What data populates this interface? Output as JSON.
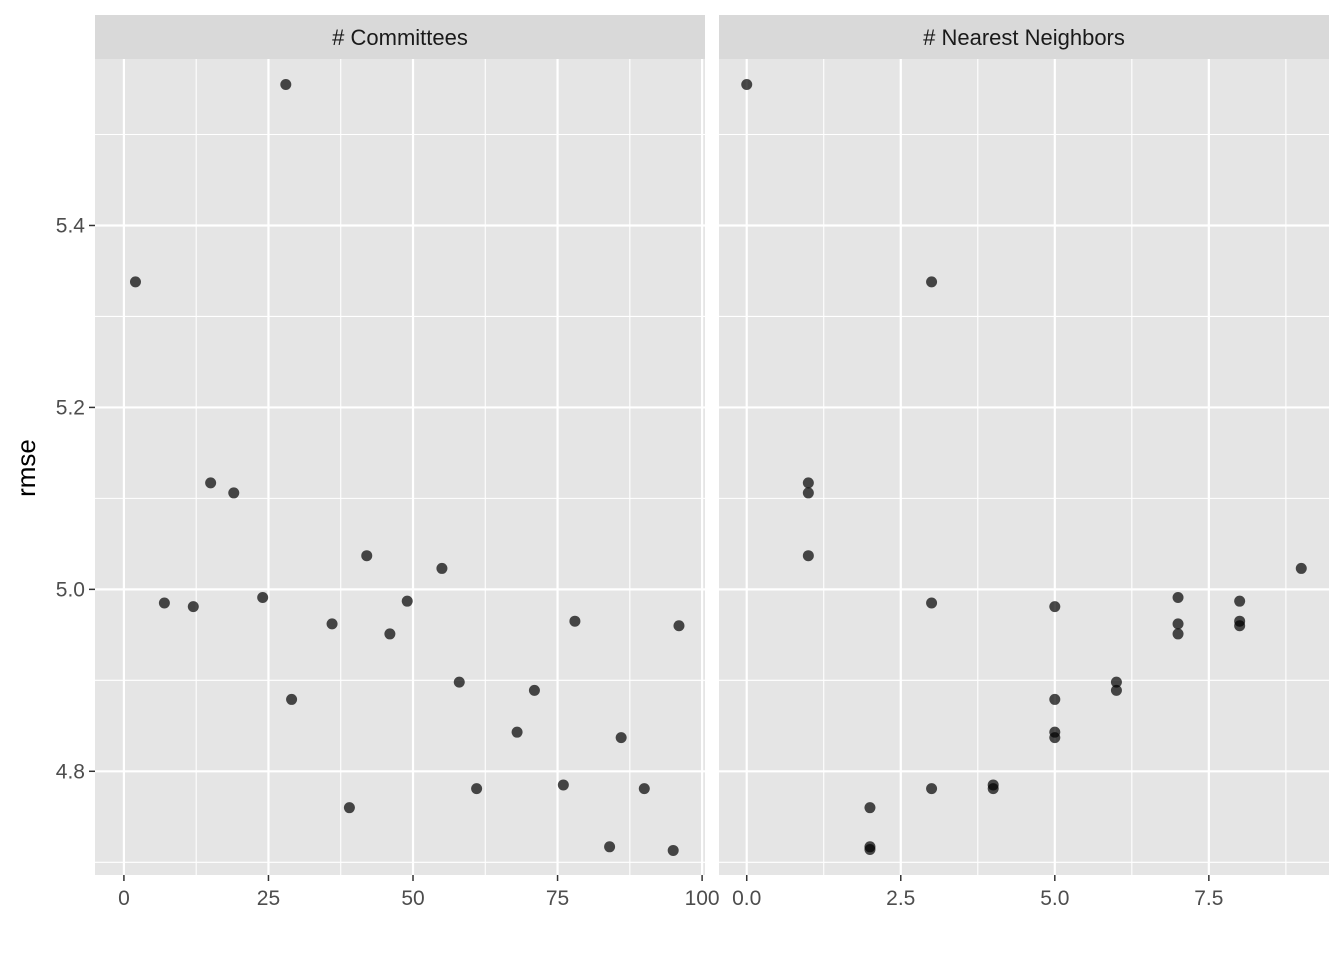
{
  "chart_data": {
    "type": "scatter",
    "y_label": "rmse",
    "y_ticks": [
      "4.8",
      "5.0",
      "5.2",
      "5.4"
    ],
    "ylim": [
      4.686,
      5.583
    ],
    "style": {
      "panel_bg": "#e5e5e5",
      "strip_bg": "#d9d9d9",
      "grid": "#ffffff",
      "point": "#000000",
      "point_opacity": 0.7
    },
    "panels": [
      {
        "strip_label": "# Committees",
        "xlim": [
          -5,
          100.5
        ],
        "x_ticks": [
          "0",
          "25",
          "50",
          "75",
          "100"
        ],
        "x_tick_values": [
          0,
          25,
          50,
          75,
          100
        ],
        "points": [
          {
            "x": 2,
            "y": 5.338
          },
          {
            "x": 7,
            "y": 4.985
          },
          {
            "x": 12,
            "y": 4.981
          },
          {
            "x": 15,
            "y": 5.117
          },
          {
            "x": 19,
            "y": 5.106
          },
          {
            "x": 24,
            "y": 4.991
          },
          {
            "x": 28,
            "y": 5.555
          },
          {
            "x": 29,
            "y": 4.879
          },
          {
            "x": 36,
            "y": 4.962
          },
          {
            "x": 39,
            "y": 4.76
          },
          {
            "x": 42,
            "y": 5.037
          },
          {
            "x": 46,
            "y": 4.951
          },
          {
            "x": 49,
            "y": 4.987
          },
          {
            "x": 55,
            "y": 5.023
          },
          {
            "x": 58,
            "y": 4.898
          },
          {
            "x": 61,
            "y": 4.781
          },
          {
            "x": 68,
            "y": 4.843
          },
          {
            "x": 71,
            "y": 4.889
          },
          {
            "x": 76,
            "y": 4.785
          },
          {
            "x": 78,
            "y": 4.965
          },
          {
            "x": 84,
            "y": 4.717
          },
          {
            "x": 86,
            "y": 4.837
          },
          {
            "x": 90,
            "y": 4.781
          },
          {
            "x": 95,
            "y": 4.713
          },
          {
            "x": 96,
            "y": 4.96
          }
        ]
      },
      {
        "strip_label": "# Nearest Neighbors",
        "xlim": [
          -0.45,
          9.45
        ],
        "x_ticks": [
          "0.0",
          "2.5",
          "5.0",
          "7.5"
        ],
        "x_tick_values": [
          0,
          2.5,
          5,
          7.5
        ],
        "points": [
          {
            "x": 0,
            "y": 5.555
          },
          {
            "x": 1,
            "y": 5.117
          },
          {
            "x": 1,
            "y": 5.106
          },
          {
            "x": 1,
            "y": 5.037
          },
          {
            "x": 2,
            "y": 4.76
          },
          {
            "x": 2,
            "y": 4.717
          },
          {
            "x": 2,
            "y": 4.714
          },
          {
            "x": 3,
            "y": 5.338
          },
          {
            "x": 3,
            "y": 4.985
          },
          {
            "x": 3,
            "y": 4.781
          },
          {
            "x": 4,
            "y": 4.785
          },
          {
            "x": 4,
            "y": 4.781
          },
          {
            "x": 5,
            "y": 4.981
          },
          {
            "x": 5,
            "y": 4.879
          },
          {
            "x": 5,
            "y": 4.843
          },
          {
            "x": 5,
            "y": 4.837
          },
          {
            "x": 6,
            "y": 4.898
          },
          {
            "x": 6,
            "y": 4.889
          },
          {
            "x": 7,
            "y": 4.991
          },
          {
            "x": 7,
            "y": 4.962
          },
          {
            "x": 7,
            "y": 4.951
          },
          {
            "x": 8,
            "y": 4.987
          },
          {
            "x": 8,
            "y": 4.965
          },
          {
            "x": 8,
            "y": 4.96
          },
          {
            "x": 9,
            "y": 5.023
          }
        ]
      }
    ]
  }
}
